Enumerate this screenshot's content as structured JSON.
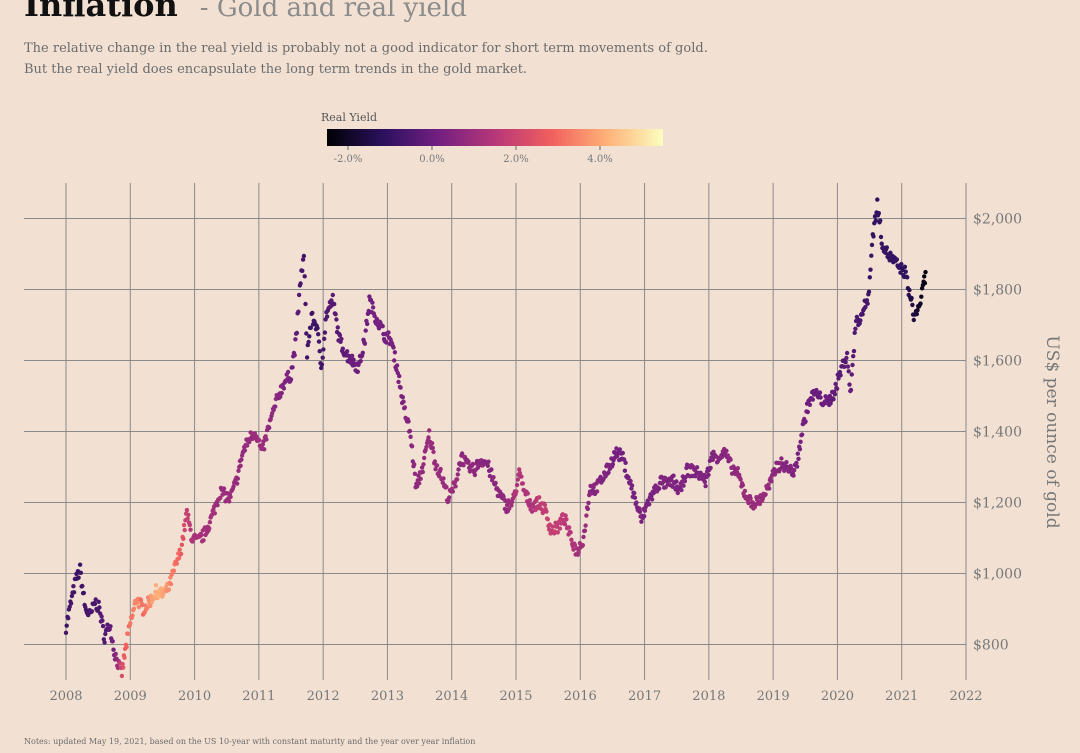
{
  "header": {
    "title": "Inflation",
    "subtitle_separator": "- Gold and real yield",
    "description_line1": "The relative change in the real yield is probably not a good indicator for short term movements of gold.",
    "description_line2": "But the real yield does encapsulate the long term trends in the gold market."
  },
  "footer": {
    "notes": "Notes: updated May 19, 2021, based on the US 10-year with constant maturity and the year over year inflation"
  },
  "colors": {
    "background": "#f2e1d3",
    "grid": "#8a8a8a",
    "colormap": [
      "#000004",
      "#2c115f",
      "#721f81",
      "#b73779",
      "#f1605d",
      "#feb078",
      "#fcfdbf"
    ]
  },
  "chart_data": {
    "type": "scatter",
    "legend": {
      "title": "Real Yield",
      "placement": "top-center",
      "range": [
        -2.5,
        5.5
      ],
      "ticks": [
        -2,
        0,
        2,
        4
      ],
      "tick_labels": [
        "-2.0%",
        "0.0%",
        "2.0%",
        "4.0%"
      ]
    },
    "xlim": [
      2008,
      2022
    ],
    "x_ticks": [
      2008,
      2009,
      2010,
      2011,
      2012,
      2013,
      2014,
      2015,
      2016,
      2017,
      2018,
      2019,
      2020,
      2021,
      2022
    ],
    "x_tick_labels": [
      "2008",
      "2009",
      "2010",
      "2011",
      "2012",
      "2013",
      "2014",
      "2015",
      "2016",
      "2017",
      "2018",
      "2019",
      "2020",
      "2021",
      "2022"
    ],
    "ylim": [
      700,
      2100
    ],
    "y_ticks": [
      800,
      1000,
      1200,
      1400,
      1600,
      1800,
      2000
    ],
    "y_tick_labels": [
      "$800",
      "$1,000",
      "$1,200",
      "$1,400",
      "$1,600",
      "$1,800",
      "$2,000"
    ],
    "ylabel": "US$ per ounce of gold",
    "grid": true,
    "series": [
      {
        "points": [
          [
            2008.0,
            850,
            -0.8
          ],
          [
            2008.08,
            920,
            -0.7
          ],
          [
            2008.15,
            980,
            -0.8
          ],
          [
            2008.22,
            1010,
            -0.9
          ],
          [
            2008.3,
            900,
            -0.7
          ],
          [
            2008.38,
            880,
            -0.6
          ],
          [
            2008.45,
            920,
            -0.6
          ],
          [
            2008.52,
            900,
            -0.5
          ],
          [
            2008.6,
            820,
            -0.4
          ],
          [
            2008.68,
            860,
            -0.3
          ],
          [
            2008.75,
            780,
            0.3
          ],
          [
            2008.82,
            740,
            1.2
          ],
          [
            2008.87,
            720,
            2.2
          ],
          [
            2008.92,
            780,
            2.8
          ],
          [
            2009.0,
            860,
            3.2
          ],
          [
            2009.1,
            930,
            3.6
          ],
          [
            2009.2,
            900,
            3.0
          ],
          [
            2009.3,
            920,
            3.6
          ],
          [
            2009.4,
            950,
            4.2
          ],
          [
            2009.5,
            940,
            4.0
          ],
          [
            2009.6,
            960,
            3.5
          ],
          [
            2009.7,
            1020,
            3.2
          ],
          [
            2009.78,
            1060,
            2.8
          ],
          [
            2009.88,
            1170,
            1.8
          ],
          [
            2009.96,
            1100,
            1.4
          ],
          [
            2010.05,
            1090,
            1.2
          ],
          [
            2010.15,
            1110,
            1.2
          ],
          [
            2010.25,
            1150,
            1.1
          ],
          [
            2010.4,
            1230,
            1.0
          ],
          [
            2010.55,
            1210,
            0.9
          ],
          [
            2010.65,
            1260,
            0.9
          ],
          [
            2010.75,
            1340,
            0.8
          ],
          [
            2010.85,
            1380,
            0.9
          ],
          [
            2010.95,
            1400,
            1.0
          ],
          [
            2011.05,
            1340,
            1.0
          ],
          [
            2011.15,
            1410,
            0.8
          ],
          [
            2011.3,
            1500,
            0.6
          ],
          [
            2011.4,
            1540,
            0.4
          ],
          [
            2011.5,
            1560,
            0.3
          ],
          [
            2011.58,
            1660,
            0.0
          ],
          [
            2011.65,
            1830,
            -0.6
          ],
          [
            2011.7,
            1890,
            -0.7
          ],
          [
            2011.75,
            1620,
            -0.8
          ],
          [
            2011.82,
            1720,
            -0.8
          ],
          [
            2011.9,
            1700,
            -0.8
          ],
          [
            2011.97,
            1580,
            -0.7
          ],
          [
            2012.05,
            1730,
            -0.5
          ],
          [
            2012.15,
            1770,
            -0.4
          ],
          [
            2012.25,
            1660,
            -0.3
          ],
          [
            2012.35,
            1620,
            -0.2
          ],
          [
            2012.45,
            1600,
            0.0
          ],
          [
            2012.55,
            1580,
            0.1
          ],
          [
            2012.65,
            1660,
            0.1
          ],
          [
            2012.72,
            1770,
            0.1
          ],
          [
            2012.8,
            1730,
            0.2
          ],
          [
            2012.88,
            1700,
            0.2
          ],
          [
            2012.96,
            1670,
            0.2
          ],
          [
            2013.05,
            1660,
            0.3
          ],
          [
            2013.15,
            1580,
            0.3
          ],
          [
            2013.25,
            1470,
            0.5
          ],
          [
            2013.35,
            1400,
            0.6
          ],
          [
            2013.45,
            1240,
            0.7
          ],
          [
            2013.55,
            1300,
            0.8
          ],
          [
            2013.65,
            1390,
            0.9
          ],
          [
            2013.75,
            1310,
            0.9
          ],
          [
            2013.85,
            1270,
            0.9
          ],
          [
            2013.95,
            1210,
            0.9
          ],
          [
            2014.05,
            1250,
            0.9
          ],
          [
            2014.15,
            1330,
            0.7
          ],
          [
            2014.25,
            1300,
            0.7
          ],
          [
            2014.35,
            1290,
            0.7
          ],
          [
            2014.45,
            1320,
            0.6
          ],
          [
            2014.55,
            1310,
            0.5
          ],
          [
            2014.65,
            1260,
            0.6
          ],
          [
            2014.75,
            1220,
            0.6
          ],
          [
            2014.85,
            1190,
            0.8
          ],
          [
            2014.95,
            1200,
            1.1
          ],
          [
            2015.05,
            1280,
            1.5
          ],
          [
            2015.15,
            1220,
            1.3
          ],
          [
            2015.25,
            1190,
            1.3
          ],
          [
            2015.35,
            1200,
            1.6
          ],
          [
            2015.45,
            1180,
            1.8
          ],
          [
            2015.55,
            1120,
            1.8
          ],
          [
            2015.65,
            1130,
            1.7
          ],
          [
            2015.75,
            1160,
            1.6
          ],
          [
            2015.85,
            1100,
            1.4
          ],
          [
            2015.95,
            1060,
            1.2
          ],
          [
            2016.05,
            1100,
            1.0
          ],
          [
            2016.15,
            1240,
            0.6
          ],
          [
            2016.25,
            1240,
            0.5
          ],
          [
            2016.35,
            1270,
            0.5
          ],
          [
            2016.45,
            1300,
            0.4
          ],
          [
            2016.55,
            1340,
            0.2
          ],
          [
            2016.65,
            1330,
            0.1
          ],
          [
            2016.75,
            1270,
            0.2
          ],
          [
            2016.85,
            1210,
            0.3
          ],
          [
            2016.95,
            1150,
            0.4
          ],
          [
            2017.05,
            1200,
            0.3
          ],
          [
            2017.15,
            1230,
            0.3
          ],
          [
            2017.25,
            1260,
            0.4
          ],
          [
            2017.35,
            1250,
            0.4
          ],
          [
            2017.45,
            1260,
            0.4
          ],
          [
            2017.55,
            1230,
            0.4
          ],
          [
            2017.65,
            1290,
            0.3
          ],
          [
            2017.75,
            1290,
            0.4
          ],
          [
            2017.85,
            1280,
            0.4
          ],
          [
            2017.95,
            1260,
            0.4
          ],
          [
            2018.05,
            1330,
            0.4
          ],
          [
            2018.15,
            1330,
            0.5
          ],
          [
            2018.25,
            1340,
            0.6
          ],
          [
            2018.35,
            1300,
            0.7
          ],
          [
            2018.45,
            1280,
            0.8
          ],
          [
            2018.55,
            1230,
            0.9
          ],
          [
            2018.65,
            1200,
            0.9
          ],
          [
            2018.75,
            1200,
            0.9
          ],
          [
            2018.85,
            1220,
            0.9
          ],
          [
            2018.95,
            1250,
            0.8
          ],
          [
            2019.05,
            1300,
            0.7
          ],
          [
            2019.15,
            1310,
            0.6
          ],
          [
            2019.25,
            1290,
            0.5
          ],
          [
            2019.35,
            1290,
            0.4
          ],
          [
            2019.45,
            1400,
            0.3
          ],
          [
            2019.55,
            1480,
            0.1
          ],
          [
            2019.65,
            1510,
            0.0
          ],
          [
            2019.75,
            1490,
            0.0
          ],
          [
            2019.85,
            1480,
            0.0
          ],
          [
            2019.95,
            1510,
            -0.1
          ],
          [
            2020.05,
            1570,
            -0.3
          ],
          [
            2020.15,
            1620,
            -0.3
          ],
          [
            2020.2,
            1500,
            -0.1
          ],
          [
            2020.28,
            1700,
            -0.5
          ],
          [
            2020.38,
            1730,
            -0.6
          ],
          [
            2020.48,
            1780,
            -0.8
          ],
          [
            2020.55,
            1950,
            -1.0
          ],
          [
            2020.62,
            2040,
            -1.1
          ],
          [
            2020.7,
            1930,
            -1.0
          ],
          [
            2020.78,
            1900,
            -1.0
          ],
          [
            2020.88,
            1880,
            -1.0
          ],
          [
            2020.97,
            1860,
            -1.1
          ],
          [
            2021.05,
            1850,
            -1.2
          ],
          [
            2021.12,
            1790,
            -1.4
          ],
          [
            2021.2,
            1720,
            -1.7
          ],
          [
            2021.28,
            1760,
            -1.9
          ],
          [
            2021.33,
            1800,
            -2.2
          ],
          [
            2021.38,
            1850,
            -2.4
          ]
        ]
      }
    ]
  }
}
